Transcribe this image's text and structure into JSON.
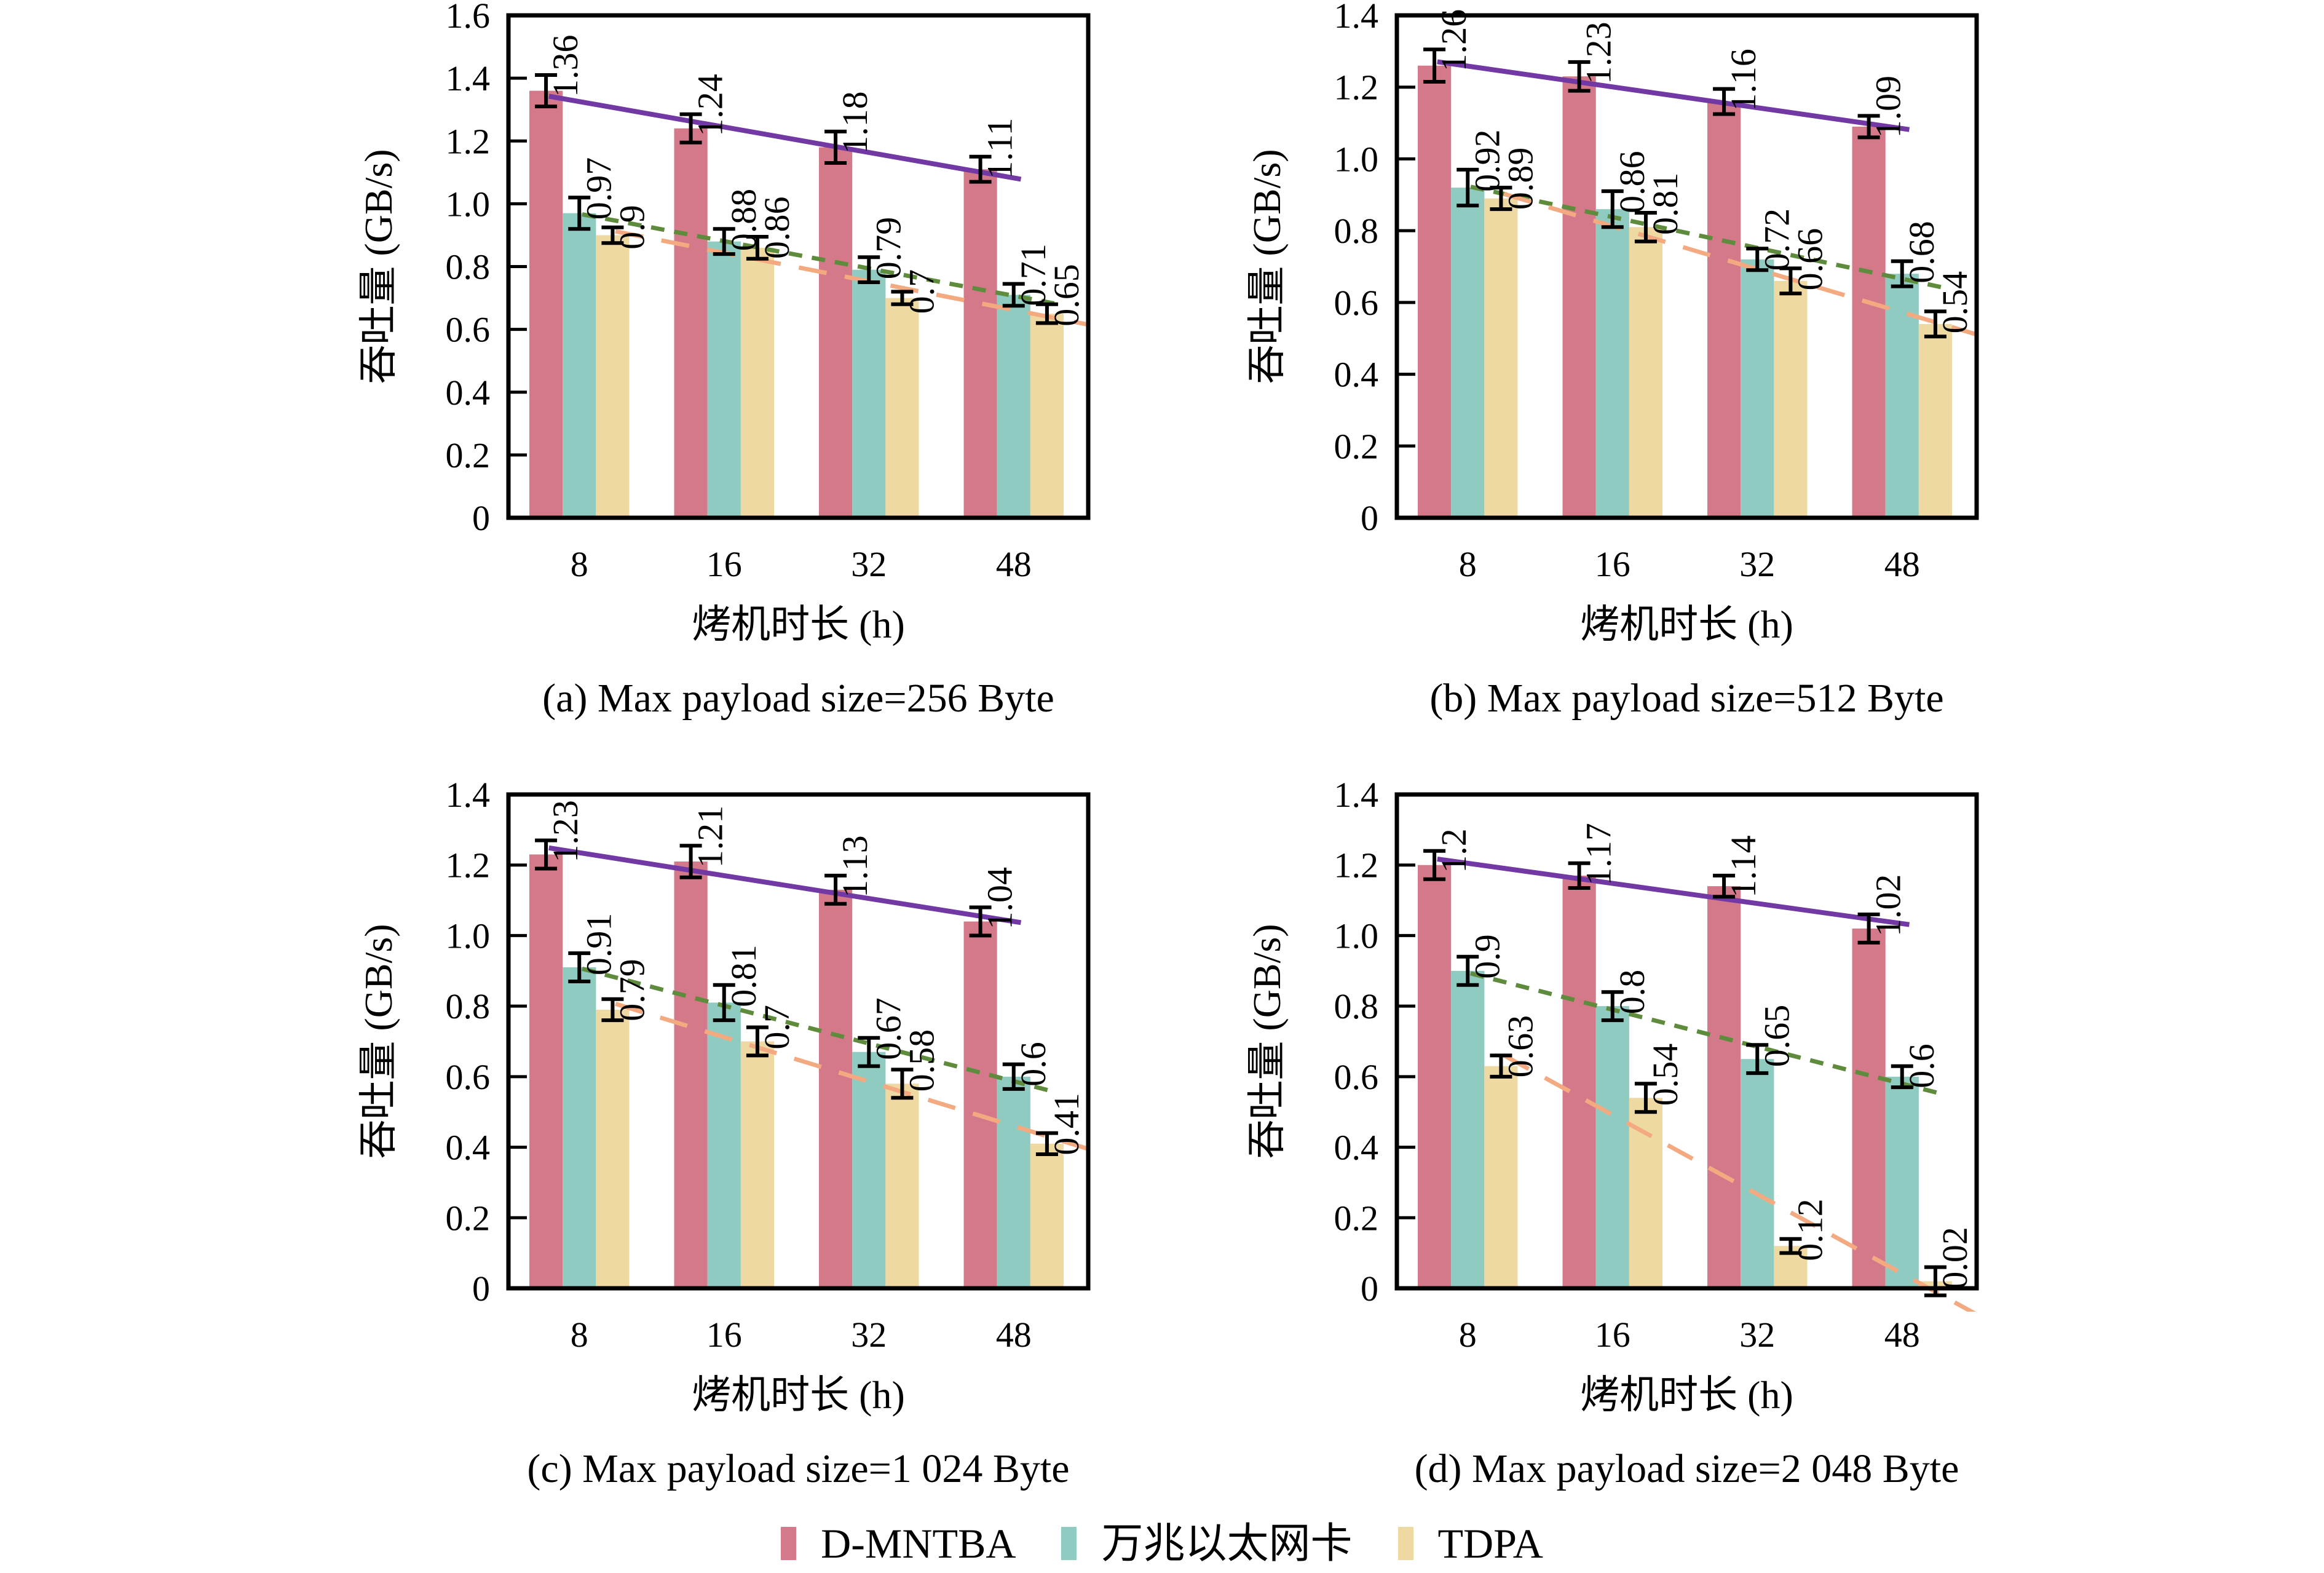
{
  "chart_data": {
    "type": "bar",
    "layout": "2x2-subplots",
    "grid": false,
    "error_bars": true,
    "trend_lines": true,
    "legend_position": "bottom-center",
    "categories": [
      "8",
      "16",
      "32",
      "48"
    ],
    "xlabel": "烤机时长 (h)",
    "ylabel": "吞吐量 (GB/s)",
    "series": [
      {
        "name": "D-MNTBA",
        "bar_color": "#D4798A",
        "trend_color": "#7239A5",
        "trend_dash": "solid"
      },
      {
        "name": "万兆以太网卡",
        "bar_color": "#8FCBC1",
        "trend_color": "#5F8C3C",
        "trend_dash": "short-dash"
      },
      {
        "name": "TDPA",
        "bar_color": "#EFD9A3",
        "trend_color": "#F4AA80",
        "trend_dash": "long-dash"
      }
    ],
    "subplots": [
      {
        "caption": "(a) Max payload size=256 Byte",
        "ylim": [
          0,
          1.6
        ],
        "ytick_labels": [
          "0",
          "0.2",
          "0.4",
          "0.6",
          "0.8",
          "1.0",
          "1.2",
          "1.4",
          "1.6"
        ],
        "values": [
          [
            1.36,
            1.24,
            1.18,
            1.11
          ],
          [
            0.97,
            0.88,
            0.79,
            0.71
          ],
          [
            0.9,
            0.86,
            0.7,
            0.65
          ]
        ],
        "value_labels": [
          [
            "1.36",
            "1.24",
            "1.18",
            "1.11"
          ],
          [
            "0.97",
            "0.88",
            "0.79",
            "0.71"
          ],
          [
            "0.9",
            "0.86",
            "0.7",
            "0.65"
          ]
        ],
        "errors": [
          [
            0.05,
            0.045,
            0.05,
            0.04
          ],
          [
            0.05,
            0.04,
            0.04,
            0.035
          ],
          [
            0.025,
            0.035,
            0.02,
            0.03
          ]
        ]
      },
      {
        "caption": "(b) Max payload size=512 Byte",
        "ylim": [
          0,
          1.4
        ],
        "ytick_labels": [
          "0",
          "0.2",
          "0.4",
          "0.6",
          "0.8",
          "1.0",
          "1.2",
          "1.4"
        ],
        "values": [
          [
            1.26,
            1.23,
            1.16,
            1.09
          ],
          [
            0.92,
            0.86,
            0.72,
            0.68
          ],
          [
            0.89,
            0.81,
            0.66,
            0.54
          ]
        ],
        "value_labels": [
          [
            "1.26",
            "1.23",
            "1.16",
            "1.09"
          ],
          [
            "0.92",
            "0.86",
            "0.72",
            "0.68"
          ],
          [
            "0.89",
            "0.81",
            "0.66",
            "0.54"
          ]
        ],
        "errors": [
          [
            0.045,
            0.04,
            0.035,
            0.03
          ],
          [
            0.05,
            0.05,
            0.03,
            0.035
          ],
          [
            0.03,
            0.04,
            0.035,
            0.035
          ]
        ]
      },
      {
        "caption": "(c) Max payload size=1 024 Byte",
        "ylim": [
          0,
          1.4
        ],
        "ytick_labels": [
          "0",
          "0.2",
          "0.4",
          "0.6",
          "0.8",
          "1.0",
          "1.2",
          "1.4"
        ],
        "values": [
          [
            1.23,
            1.21,
            1.13,
            1.04
          ],
          [
            0.91,
            0.81,
            0.67,
            0.6
          ],
          [
            0.79,
            0.7,
            0.58,
            0.41
          ]
        ],
        "value_labels": [
          [
            "1.23",
            "1.21",
            "1.13",
            "1.04"
          ],
          [
            "0.91",
            "0.81",
            "0.67",
            "0.6"
          ],
          [
            "0.79",
            "0.7",
            "0.58",
            "0.41"
          ]
        ],
        "errors": [
          [
            0.04,
            0.045,
            0.04,
            0.04
          ],
          [
            0.04,
            0.05,
            0.04,
            0.035
          ],
          [
            0.03,
            0.04,
            0.04,
            0.03
          ]
        ]
      },
      {
        "caption": "(d) Max payload size=2 048 Byte",
        "ylim": [
          0,
          1.4
        ],
        "ytick_labels": [
          "0",
          "0.2",
          "0.4",
          "0.6",
          "0.8",
          "1.0",
          "1.2",
          "1.4"
        ],
        "values": [
          [
            1.2,
            1.17,
            1.14,
            1.02
          ],
          [
            0.9,
            0.8,
            0.65,
            0.6
          ],
          [
            0.63,
            0.54,
            0.12,
            0.02
          ]
        ],
        "value_labels": [
          [
            "1.2",
            "1.17",
            "1.14",
            "1.02"
          ],
          [
            "0.9",
            "0.8",
            "0.65",
            "0.6"
          ],
          [
            "0.63",
            "0.54",
            "0.12",
            "0.02"
          ]
        ],
        "errors": [
          [
            0.04,
            0.035,
            0.03,
            0.04
          ],
          [
            0.04,
            0.04,
            0.04,
            0.03
          ],
          [
            0.03,
            0.04,
            0.02,
            0.04
          ]
        ]
      }
    ]
  }
}
